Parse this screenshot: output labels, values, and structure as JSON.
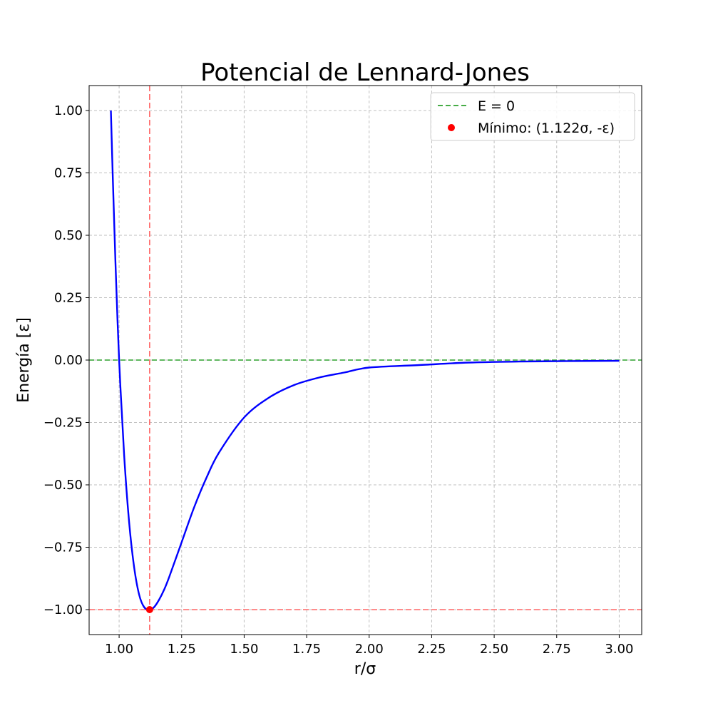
{
  "chart_data": {
    "type": "line",
    "title": "Potencial de Lennard-Jones",
    "xlabel": "r/σ",
    "ylabel": "Energía [ε]",
    "xlim": [
      0.88,
      3.09
    ],
    "ylim": [
      -1.1,
      1.1
    ],
    "xticks": [
      1.0,
      1.25,
      1.5,
      1.75,
      2.0,
      2.25,
      2.5,
      2.75,
      3.0
    ],
    "xtick_labels": [
      "1.00",
      "1.25",
      "1.50",
      "1.75",
      "2.00",
      "2.25",
      "2.50",
      "2.75",
      "3.00"
    ],
    "yticks": [
      1.0,
      0.75,
      0.5,
      0.25,
      0.0,
      -0.25,
      -0.5,
      -0.75,
      -1.0
    ],
    "ytick_labels": [
      "1.00",
      "0.75",
      "0.50",
      "0.25",
      "0.00",
      "−0.25",
      "−0.50",
      "−0.75",
      "−1.00"
    ],
    "grid": true,
    "legend_position": "top-right",
    "series": [
      {
        "kind": "curve",
        "color": "#0000ff",
        "x": [
          0.967,
          0.975,
          0.985,
          1.0,
          1.02,
          1.04,
          1.06,
          1.08,
          1.1,
          1.122,
          1.14,
          1.16,
          1.18,
          1.2,
          1.25,
          1.3,
          1.35,
          1.4,
          1.5,
          1.6,
          1.7,
          1.8,
          1.9,
          2.0,
          2.2,
          2.4,
          2.6,
          2.8,
          3.0
        ],
        "y": [
          1.0,
          0.72,
          0.4,
          0.0,
          -0.38,
          -0.65,
          -0.83,
          -0.94,
          -0.99,
          -1.0,
          -0.99,
          -0.96,
          -0.92,
          -0.87,
          -0.73,
          -0.59,
          -0.47,
          -0.37,
          -0.23,
          -0.15,
          -0.1,
          -0.07,
          -0.05,
          -0.03,
          -0.02,
          -0.01,
          -0.006,
          -0.004,
          -0.003
        ]
      }
    ],
    "reference_lines": [
      {
        "name": "E = 0",
        "orientation": "horizontal",
        "value": 0.0,
        "color": "#2ca02c",
        "in_legend": true
      },
      {
        "orientation": "vertical",
        "value": 1.122,
        "color": "#ff6666",
        "in_legend": false
      },
      {
        "orientation": "horizontal",
        "value": -1.0,
        "color": "#ff6666",
        "in_legend": false
      }
    ],
    "points": [
      {
        "name": "Mínimo: (1.122σ, -ε)",
        "x": 1.122,
        "y": -1.0,
        "color": "#ff0000"
      }
    ]
  }
}
